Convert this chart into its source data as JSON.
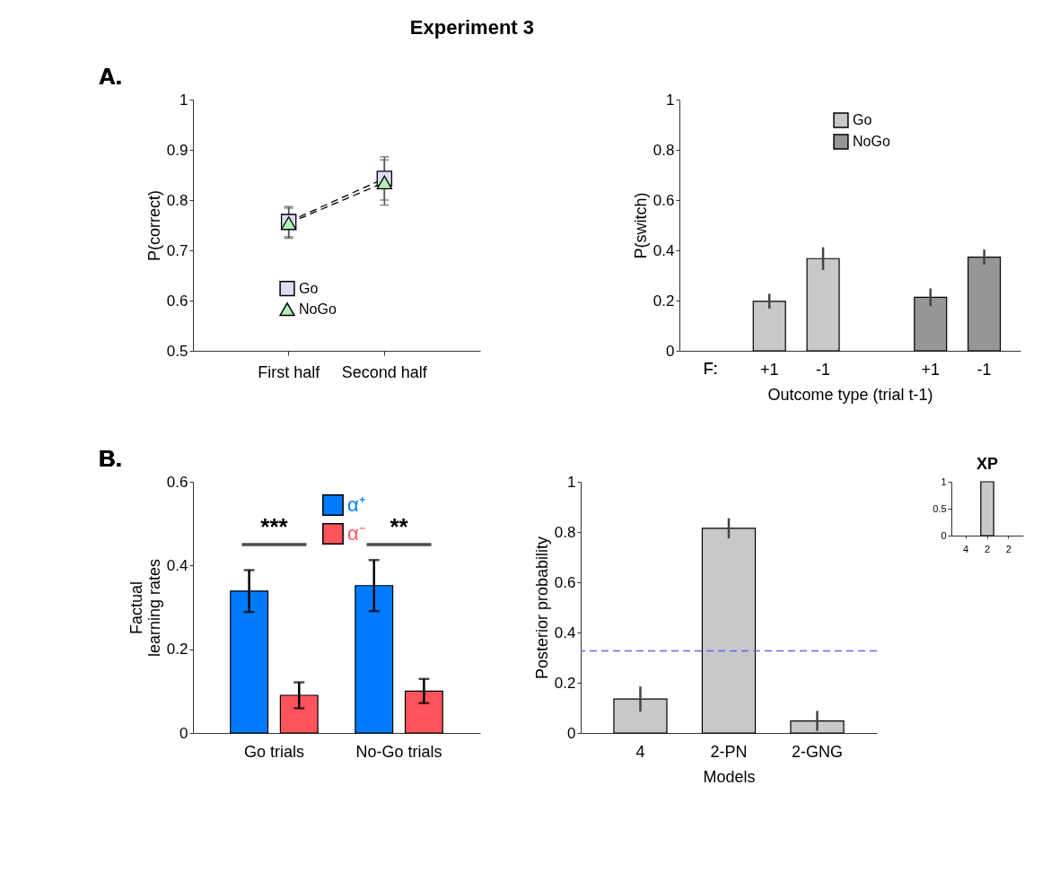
{
  "chart_data": [
    {
      "type": "line",
      "title": "Experiment 3",
      "annotations": [
        "A."
      ],
      "categories": [
        "First half",
        "Second half"
      ],
      "ylabel": "P(correct)",
      "ylim": [
        0.5,
        1
      ],
      "yticks": [
        0.5,
        0.6,
        0.7,
        0.8,
        0.9,
        1
      ],
      "grid": false,
      "legend": "bottom",
      "line_style": "dashed",
      "series": [
        {
          "name": "Go",
          "color": "#dcdcf5",
          "marker": "square",
          "values": [
            0.757,
            0.843
          ],
          "errors": [
            0.03,
            0.043
          ]
        },
        {
          "name": "NoGo",
          "color": "#b4f0b4",
          "marker": "triangle",
          "values": [
            0.754,
            0.835
          ],
          "errors": [
            0.03,
            0.045
          ]
        }
      ]
    },
    {
      "type": "bar",
      "annotations": [
        "F:"
      ],
      "categories": [
        null,
        "+1",
        "-1",
        null,
        "+1",
        "-1"
      ],
      "xlabel": "Outcome type (trial t-1)",
      "ylabel": "P(switch)",
      "ylim": [
        0,
        1
      ],
      "yticks": [
        0,
        0.2,
        0.4,
        0.6,
        0.8,
        1
      ],
      "grid": false,
      "legend": "top",
      "series": [
        {
          "name": "Go",
          "color": "#c8c8c8",
          "values": [
            null,
            0.197,
            0.367,
            null,
            null,
            null
          ],
          "errors": [
            null,
            0.03,
            0.045,
            null,
            null,
            null
          ]
        },
        {
          "name": "NoGo",
          "color": "#969696",
          "values": [
            null,
            null,
            null,
            null,
            0.213,
            0.373
          ],
          "errors": [
            null,
            null,
            null,
            null,
            0.035,
            0.03
          ]
        }
      ]
    },
    {
      "type": "bar",
      "annotations": [
        "B.",
        "***",
        "**"
      ],
      "categories": [
        "Go trials",
        "No-Go trials"
      ],
      "ylabel": "Factual\nlearning rates",
      "ylim": [
        0,
        0.6
      ],
      "yticks": [
        0,
        0.2,
        0.4,
        0.6
      ],
      "grid": false,
      "legend": "top",
      "series": [
        {
          "name": "α⁺",
          "color": "#007bff",
          "values": [
            0.339,
            0.352
          ],
          "errors": [
            0.05,
            0.061
          ]
        },
        {
          "name": "α⁻",
          "color": "#ff545c",
          "values": [
            0.09,
            0.1
          ],
          "errors": [
            0.031,
            0.029
          ]
        }
      ]
    },
    {
      "type": "bar",
      "categories": [
        "4",
        "2-PN",
        "2-GNG"
      ],
      "xlabel": "Models",
      "ylabel": "Posterior probability",
      "ylim": [
        0,
        1
      ],
      "yticks": [
        0,
        0.2,
        0.4,
        0.6,
        0.8,
        1
      ],
      "grid": false,
      "ref_lines": [
        {
          "axis": "y",
          "value": 0.327,
          "color": "#6464ff",
          "line_style": "dashed"
        }
      ],
      "series": [
        {
          "color": "#c8c8c8",
          "values": [
            0.135,
            0.815,
            0.048
          ],
          "errors": [
            0.05,
            0.04,
            0.04
          ]
        }
      ]
    },
    {
      "type": "bar",
      "title": "XP",
      "categories": [
        "4",
        "2",
        "2"
      ],
      "ylim": [
        0,
        1
      ],
      "yticks": [
        0,
        0.5,
        1
      ],
      "grid": false,
      "series": [
        {
          "color": "#c8c8c8",
          "values": [
            0,
            1,
            0
          ]
        }
      ]
    }
  ]
}
